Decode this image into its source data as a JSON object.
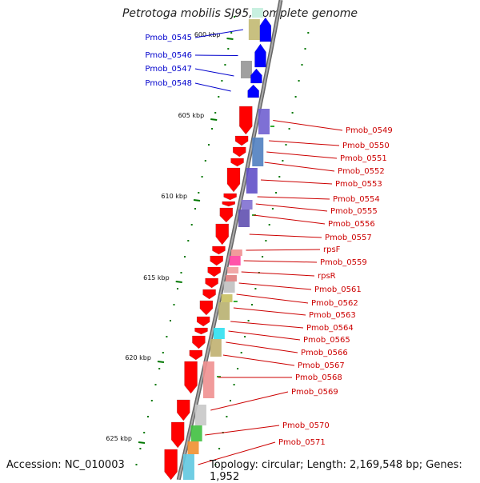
{
  "title": "Petrotoga mobilis SJ95, complete genome",
  "accession": "Accession: NC_010003",
  "summary": "Topology: circular; Length: 2,169,548 bp; Genes: 1,952",
  "colors": {
    "fwd_label": "#0000cc",
    "rev_label": "#cc0000",
    "fwd_gene": "#0000ff",
    "rev_gene": "#ff0000",
    "backbone": "#888888",
    "ticks": "#007700"
  },
  "scale_labels": [
    "600 kbp",
    "605 kbp",
    "610 kbp",
    "615 kbp",
    "620 kbp",
    "625 kbp"
  ],
  "forward_genes": [
    "Pmob_0545",
    "Pmob_0546",
    "Pmob_0547",
    "Pmob_0548"
  ],
  "reverse_genes": [
    "Pmob_0549",
    "Pmob_0550",
    "Pmob_0551",
    "Pmob_0552",
    "Pmob_0553",
    "Pmob_0554",
    "Pmob_0555",
    "Pmob_0556",
    "Pmob_0557",
    "rpsF",
    "Pmob_0559",
    "rpsR",
    "Pmob_0561",
    "Pmob_0562",
    "Pmob_0563",
    "Pmob_0564",
    "Pmob_0565",
    "Pmob_0566",
    "Pmob_0567",
    "Pmob_0568",
    "Pmob_0569",
    "Pmob_0570",
    "Pmob_0571"
  ]
}
